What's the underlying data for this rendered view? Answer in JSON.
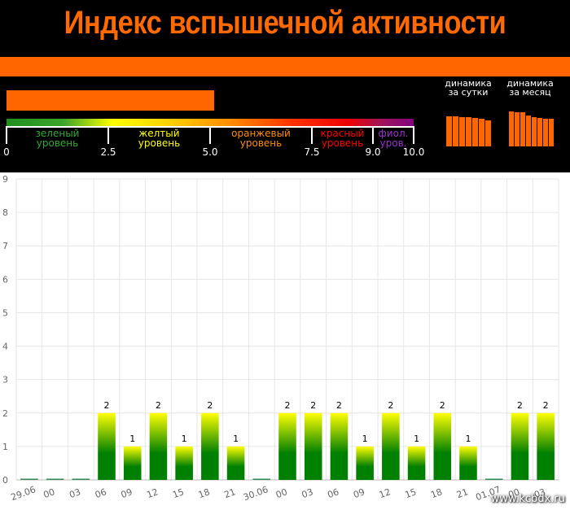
{
  "header": {
    "title": "Индекс вспышечной активности",
    "index_value": 5.1,
    "colors": {
      "background": "#000000",
      "accent": "#ff6600"
    }
  },
  "scale": {
    "ticks": [
      "0",
      "2.5",
      "5.0",
      "7.5",
      "9.0",
      "10.0"
    ],
    "levels": [
      {
        "line1": "зеленый",
        "line2": "уровень",
        "color": "#33aa33"
      },
      {
        "line1": "желтый",
        "line2": "уровень",
        "color": "#ffff00"
      },
      {
        "line1": "оранжевый",
        "line2": "уровень",
        "color": "#ff8c00"
      },
      {
        "line1": "красный",
        "line2": "уровень",
        "color": "#ff0000"
      },
      {
        "line1": "фиол.",
        "line2": "уров.",
        "color": "#9933cc"
      }
    ]
  },
  "dynamics": {
    "day": {
      "label_line1": "динамика",
      "label_line2": "за сутки",
      "levels": [
        0.78,
        0.78,
        0.76,
        0.74,
        0.72,
        0.7,
        0.67
      ]
    },
    "month": {
      "label_line1": "динамика",
      "label_line2": "за месяц",
      "levels": [
        0.9,
        0.87,
        0.87,
        0.8,
        0.74,
        0.72,
        0.7,
        0.7
      ]
    }
  },
  "chart_data": {
    "type": "bar",
    "categories": [
      "29.06",
      "00",
      "03",
      "06",
      "09",
      "12",
      "15",
      "18",
      "21",
      "30.06",
      "00",
      "03",
      "06",
      "09",
      "12",
      "15",
      "18",
      "21",
      "01.07",
      "00",
      "03"
    ],
    "values": [
      0,
      0,
      0,
      2,
      1,
      2,
      1,
      2,
      1,
      0,
      2,
      2,
      2,
      1,
      2,
      1,
      2,
      1,
      0,
      2,
      2
    ],
    "ylim": [
      0,
      9
    ],
    "yticks": [
      "0",
      "1",
      "2",
      "3",
      "4",
      "5",
      "6",
      "7",
      "8",
      "9"
    ],
    "grid": true,
    "bar_colors": {
      "top": "#ffff00",
      "bottom": "#008000"
    }
  },
  "watermark": "www.kcbdx.ru"
}
